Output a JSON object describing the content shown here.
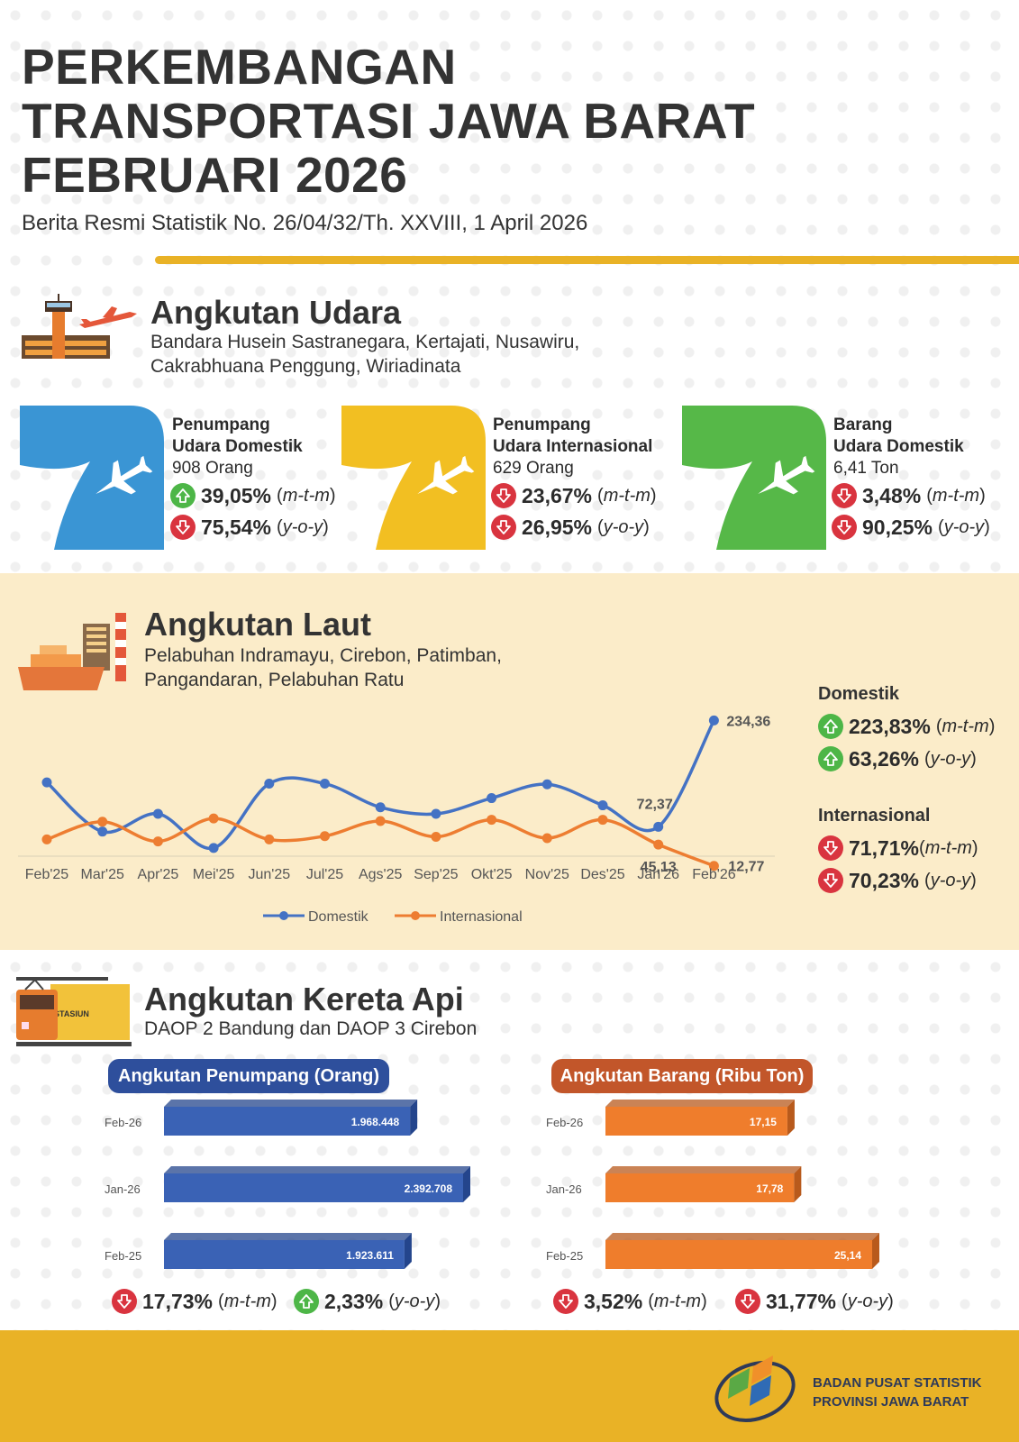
{
  "header": {
    "title_lines": [
      "PERKEMBANGAN",
      "TRANSPORTASI JAWA BARAT",
      "FEBRUARI 2026"
    ],
    "subtitle": "Berita Resmi Statistik No. 26/04/32/Th. XXVIII, 1 April 2026"
  },
  "udara": {
    "title": "Angkutan Udara",
    "subtitle_lines": [
      "Bandara Husein Sastranegara, Kertajati, Nusawiru,",
      "Cakrabhuana Penggung, Wiriadinata"
    ],
    "cards": [
      {
        "head1": "Penumpang",
        "head2": "Udara Domestik",
        "value": "908 Orang",
        "color": "#3a95d4",
        "mtm": "39,05%",
        "mtm_dir": "up",
        "yoy": "75,54%",
        "yoy_dir": "down"
      },
      {
        "head1": "Penumpang",
        "head2": "Udara Internasional",
        "value": "629 Orang",
        "color": "#f2bf22",
        "mtm": "23,67%",
        "mtm_dir": "down",
        "yoy": "26,95%",
        "yoy_dir": "down"
      },
      {
        "head1": "Barang",
        "head2": "Udara Domestik",
        "value": "6,41 Ton",
        "color": "#56b848",
        "mtm": "3,48%",
        "mtm_dir": "down",
        "yoy": "90,25%",
        "yoy_dir": "down"
      }
    ],
    "mtm_label": "m-t-m",
    "yoy_label": "y-o-y"
  },
  "laut": {
    "title": "Angkutan Laut",
    "subtitle_lines": [
      "Pelabuhan Indramayu, Cirebon, Patimban,",
      "Pangandaran, Pelabuhan Ratu"
    ],
    "domestik": {
      "head": "Domestik",
      "mtm": "223,83%",
      "mtm_dir": "up",
      "yoy": "63,26%",
      "yoy_dir": "up"
    },
    "internasional": {
      "head": "Internasional",
      "mtm": "71,71%",
      "mtm_dir": "down",
      "yoy": "70,23%",
      "yoy_dir": "down"
    }
  },
  "kereta": {
    "title": "Angkutan Kereta Api",
    "subtitle": "DAOP 2 Bandung dan DAOP 3 Cirebon",
    "penumpang": {
      "title": "Angkutan Penumpang (Orang)",
      "color": "#3a5ba8",
      "title_bg": "#2e4f9c",
      "mtm": "17,73%",
      "mtm_dir": "down",
      "yoy": "2,33%",
      "yoy_dir": "up"
    },
    "barang": {
      "title": "Angkutan Barang (Ribu Ton)",
      "color": "#ef7d2c",
      "title_bg": "#c2562a",
      "mtm": "3,52%",
      "mtm_dir": "down",
      "yoy": "31,77%",
      "yoy_dir": "down"
    }
  },
  "footer": {
    "org_line1": "BADAN PUSAT STATISTIK",
    "org_line2": "PROVINSI JAWA BARAT"
  },
  "chart_data": [
    {
      "type": "line",
      "x": [
        "Feb'25",
        "Mar'25",
        "Apr'25",
        "Mei'25",
        "Jun'25",
        "Jul'25",
        "Ags'25",
        "Sep'25",
        "Okt'25",
        "Nov'25",
        "Des'25",
        "Jan'26",
        "Feb'26"
      ],
      "series": [
        {
          "name": "Domestik",
          "color": "#4472c4",
          "values": [
            140,
            65,
            92,
            40,
            138,
            138,
            102,
            92,
            116,
            137,
            105,
            72.37,
            234.36
          ]
        },
        {
          "name": "Internasional",
          "color": "#ed7d31",
          "values": [
            53,
            80,
            50,
            85,
            53,
            58,
            81,
            57,
            83,
            55,
            83,
            45.13,
            12.77
          ]
        }
      ],
      "data_labels": [
        {
          "series": "Domestik",
          "x": "Jan'26",
          "text": "72,37"
        },
        {
          "series": "Domestik",
          "x": "Feb'26",
          "text": "234,36"
        },
        {
          "series": "Internasional",
          "x": "Jan'26",
          "text": "45,13"
        },
        {
          "series": "Internasional",
          "x": "Feb'26",
          "text": "12,77"
        }
      ],
      "ylim": [
        0,
        250
      ],
      "legend": "bottom",
      "grid": false
    },
    {
      "type": "bar",
      "orientation": "horizontal",
      "categories": [
        "Feb-26",
        "Jan-26",
        "Feb-25"
      ],
      "values": [
        1968448,
        2392708,
        1923611
      ],
      "labels": [
        "1.968.448",
        "2.392.708",
        "1.923.611"
      ],
      "title": "Angkutan Penumpang (Orang)"
    },
    {
      "type": "bar",
      "orientation": "horizontal",
      "categories": [
        "Feb-26",
        "Jan-26",
        "Feb-25"
      ],
      "values": [
        17.15,
        17.78,
        25.14
      ],
      "labels": [
        "17,15",
        "17,78",
        "25,14"
      ],
      "title": "Angkutan Barang (Ribu Ton)"
    }
  ]
}
